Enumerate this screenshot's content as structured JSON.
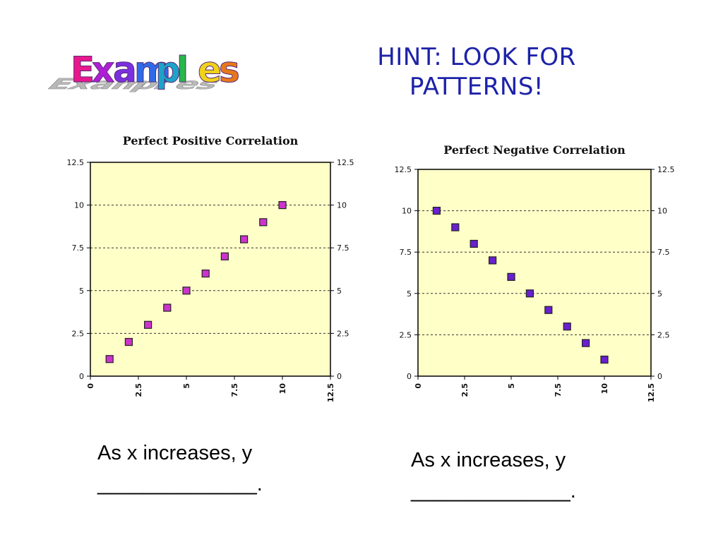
{
  "logo": {
    "text": "Examples",
    "colors": [
      "#e8188c",
      "#b01fd6",
      "#7a2fe0",
      "#2f6be8",
      "#1ea3c8",
      "#27b84a",
      "#f0d21a",
      "#e8781c"
    ]
  },
  "hint": {
    "line1": "HINT:  LOOK FOR",
    "line2": "PATTERNS!",
    "color": "#1d22a8"
  },
  "captions": {
    "left": {
      "line1": "As x increases, y",
      "line2": "______________."
    },
    "right": {
      "line1": "As x increases, y",
      "line2": "______________."
    }
  },
  "chart_data": [
    {
      "type": "scatter",
      "title": "Perfect Positive Correlation",
      "xlabel": "",
      "ylabel": "",
      "xlim": [
        0,
        12.5
      ],
      "ylim": [
        0,
        12.5
      ],
      "xticks": [
        "0",
        "2.5",
        "5",
        "7.5",
        "10",
        "12.5"
      ],
      "yticks": [
        "0",
        "2.5",
        "5",
        "7.5",
        "10",
        "12.5"
      ],
      "grid": "horizontal dashed",
      "marker_color": "#cc33cc",
      "background": "#ffffc8",
      "series": [
        {
          "x": [
            1,
            2,
            3,
            4,
            5,
            6,
            7,
            8,
            9,
            10
          ],
          "y": [
            1,
            2,
            3,
            4,
            5,
            6,
            7,
            8,
            9,
            10
          ]
        }
      ]
    },
    {
      "type": "scatter",
      "title": "Perfect Negative Correlation",
      "xlabel": "",
      "ylabel": "",
      "xlim": [
        0,
        12.5
      ],
      "ylim": [
        0,
        12.5
      ],
      "xticks": [
        "0",
        "2.5",
        "5",
        "7.5",
        "10",
        "12.5"
      ],
      "yticks": [
        "0",
        "2.5",
        "5",
        "7.5",
        "10",
        "12.5"
      ],
      "grid": "horizontal dashed",
      "marker_color": "#6a1fd0",
      "background": "#ffffc8",
      "series": [
        {
          "x": [
            1,
            2,
            3,
            4,
            5,
            6,
            7,
            8,
            9,
            10
          ],
          "y": [
            10,
            9,
            8,
            7,
            6,
            5,
            4,
            3,
            2,
            1
          ]
        }
      ]
    }
  ]
}
